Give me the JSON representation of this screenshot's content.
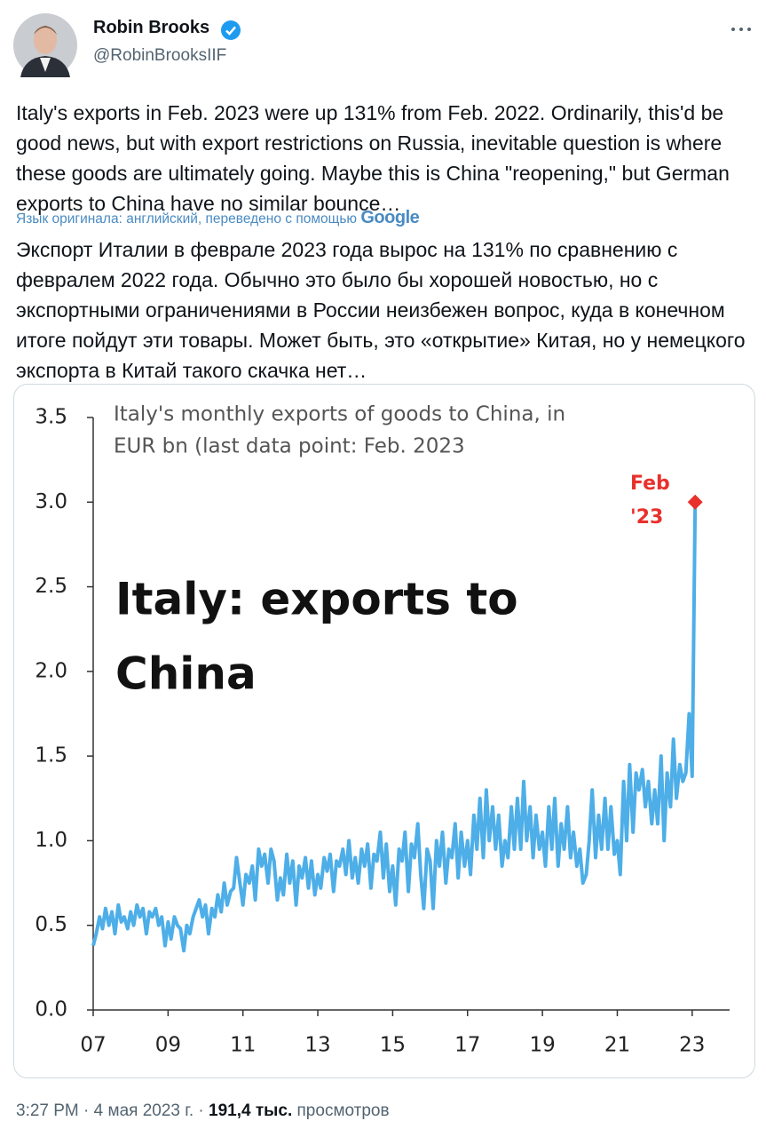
{
  "header": {
    "name": "Robin Brooks",
    "handle": "@RobinBrooksIIF"
  },
  "tweet": {
    "text": "Italy's exports in Feb. 2023 were up 131% from Feb. 2022. Ordinarily, this'd be good news, but with export restrictions on Russia, inevitable question is where these goods are ultimately going. Maybe this is China \"reopening,\" but German exports to China have no similar bounce…",
    "translation_note": "Язык оригинала: английский, переведено с помощью",
    "translator": "Google",
    "translated_text": "Экспорт Италии в феврале 2023 года вырос на 131% по сравнению с февралем 2022 года. Обычно это было бы хорошей новостью, но с экспортными ограничениями в России неизбежен вопрос, куда в конечном итоге пойдут эти товары. Может быть, это «открытие» Китая, но у немецкого экспорта в Китай такого скачка нет…"
  },
  "chart_data": {
    "type": "line",
    "title": [
      "Italy's monthly exports of goods to China, in",
      "EUR bn (last data point: Feb. 2023"
    ],
    "headline": [
      "Italy: exports to",
      "China"
    ],
    "annotation": [
      "Feb",
      "'23"
    ],
    "color": "#4daee8",
    "marker_color": "#e8312c",
    "x": [
      2007.0,
      2007.08,
      2007.17,
      2007.25,
      2007.33,
      2007.42,
      2007.5,
      2007.58,
      2007.67,
      2007.75,
      2007.83,
      2007.92,
      2008.0,
      2008.08,
      2008.17,
      2008.25,
      2008.33,
      2008.42,
      2008.5,
      2008.58,
      2008.67,
      2008.75,
      2008.83,
      2008.92,
      2009.0,
      2009.08,
      2009.17,
      2009.25,
      2009.33,
      2009.42,
      2009.5,
      2009.58,
      2009.67,
      2009.75,
      2009.83,
      2009.92,
      2010.0,
      2010.08,
      2010.17,
      2010.25,
      2010.33,
      2010.42,
      2010.5,
      2010.58,
      2010.67,
      2010.75,
      2010.83,
      2010.92,
      2011.0,
      2011.08,
      2011.17,
      2011.25,
      2011.33,
      2011.42,
      2011.5,
      2011.58,
      2011.67,
      2011.75,
      2011.83,
      2011.92,
      2012.0,
      2012.08,
      2012.17,
      2012.25,
      2012.33,
      2012.42,
      2012.5,
      2012.58,
      2012.67,
      2012.75,
      2012.83,
      2012.92,
      2013.0,
      2013.08,
      2013.17,
      2013.25,
      2013.33,
      2013.42,
      2013.5,
      2013.58,
      2013.67,
      2013.75,
      2013.83,
      2013.92,
      2014.0,
      2014.08,
      2014.17,
      2014.25,
      2014.33,
      2014.42,
      2014.5,
      2014.58,
      2014.67,
      2014.75,
      2014.83,
      2014.92,
      2015.0,
      2015.08,
      2015.17,
      2015.25,
      2015.33,
      2015.42,
      2015.5,
      2015.58,
      2015.67,
      2015.75,
      2015.83,
      2015.92,
      2016.0,
      2016.08,
      2016.17,
      2016.25,
      2016.33,
      2016.42,
      2016.5,
      2016.58,
      2016.67,
      2016.75,
      2016.83,
      2016.92,
      2017.0,
      2017.08,
      2017.17,
      2017.25,
      2017.33,
      2017.42,
      2017.5,
      2017.58,
      2017.67,
      2017.75,
      2017.83,
      2017.92,
      2018.0,
      2018.08,
      2018.17,
      2018.25,
      2018.33,
      2018.42,
      2018.5,
      2018.58,
      2018.67,
      2018.75,
      2018.83,
      2018.92,
      2019.0,
      2019.08,
      2019.17,
      2019.25,
      2019.33,
      2019.42,
      2019.5,
      2019.58,
      2019.67,
      2019.75,
      2019.83,
      2019.92,
      2020.0,
      2020.08,
      2020.17,
      2020.25,
      2020.33,
      2020.42,
      2020.5,
      2020.58,
      2020.67,
      2020.75,
      2020.83,
      2020.92,
      2021.0,
      2021.08,
      2021.17,
      2021.25,
      2021.33,
      2021.42,
      2021.5,
      2021.58,
      2021.67,
      2021.75,
      2021.83,
      2021.92,
      2022.0,
      2022.08,
      2022.17,
      2022.25,
      2022.33,
      2022.42,
      2022.5,
      2022.58,
      2022.67,
      2022.75,
      2022.83,
      2022.92,
      2023.0,
      2023.08
    ],
    "values": [
      0.38,
      0.45,
      0.55,
      0.48,
      0.6,
      0.5,
      0.58,
      0.45,
      0.62,
      0.52,
      0.55,
      0.48,
      0.58,
      0.5,
      0.62,
      0.55,
      0.6,
      0.45,
      0.58,
      0.55,
      0.6,
      0.5,
      0.55,
      0.38,
      0.52,
      0.42,
      0.55,
      0.5,
      0.48,
      0.35,
      0.5,
      0.45,
      0.55,
      0.6,
      0.65,
      0.55,
      0.62,
      0.45,
      0.6,
      0.55,
      0.68,
      0.58,
      0.75,
      0.62,
      0.7,
      0.72,
      0.9,
      0.75,
      0.62,
      0.8,
      0.75,
      0.85,
      0.65,
      0.95,
      0.85,
      0.92,
      0.75,
      0.95,
      0.88,
      0.65,
      0.78,
      0.68,
      0.92,
      0.75,
      0.88,
      0.62,
      0.85,
      0.78,
      0.9,
      0.72,
      0.88,
      0.68,
      0.8,
      0.72,
      0.9,
      0.82,
      0.92,
      0.7,
      0.88,
      0.85,
      0.95,
      0.8,
      1.0,
      0.78,
      0.9,
      0.75,
      0.95,
      0.85,
      0.98,
      0.72,
      0.92,
      0.88,
      1.05,
      0.78,
      0.98,
      0.7,
      0.85,
      0.62,
      0.95,
      0.88,
      1.05,
      0.7,
      0.98,
      0.9,
      1.1,
      0.8,
      0.6,
      0.95,
      0.88,
      0.6,
      1.0,
      0.85,
      1.05,
      0.75,
      0.95,
      0.9,
      1.1,
      0.78,
      1.05,
      0.85,
      1.0,
      0.8,
      1.15,
      0.95,
      1.25,
      0.9,
      1.3,
      1.0,
      1.2,
      0.95,
      1.15,
      0.85,
      1.0,
      0.9,
      1.2,
      0.95,
      1.25,
      0.95,
      1.35,
      1.0,
      1.2,
      0.9,
      1.15,
      0.95,
      1.05,
      0.85,
      1.2,
      0.95,
      1.25,
      0.85,
      1.1,
      0.95,
      1.2,
      0.9,
      1.05,
      0.85,
      0.95,
      0.75,
      0.8,
      1.0,
      1.3,
      0.9,
      1.15,
      0.95,
      1.25,
      0.95,
      1.2,
      0.92,
      1.0,
      0.8,
      1.35,
      1.0,
      1.45,
      1.05,
      1.4,
      1.3,
      1.42,
      1.2,
      1.35,
      1.1,
      1.3,
      1.1,
      1.5,
      1.0,
      1.4,
      1.2,
      1.6,
      1.25,
      1.45,
      1.35,
      1.4,
      1.75,
      1.38,
      3.0
    ],
    "xlim": [
      2007,
      2024
    ],
    "xticks": [
      {
        "value": 2007,
        "label": "07"
      },
      {
        "value": 2009,
        "label": "09"
      },
      {
        "value": 2011,
        "label": "11"
      },
      {
        "value": 2013,
        "label": "13"
      },
      {
        "value": 2015,
        "label": "15"
      },
      {
        "value": 2017,
        "label": "17"
      },
      {
        "value": 2019,
        "label": "19"
      },
      {
        "value": 2021,
        "label": "21"
      },
      {
        "value": 2023,
        "label": "23"
      }
    ],
    "ylim": [
      0,
      3.5
    ],
    "yticks": [
      {
        "value": 0,
        "label": "0.0"
      },
      0.5,
      {
        "value": 1,
        "label": "1.0"
      },
      1.5,
      {
        "value": 2,
        "label": "2.0"
      },
      2.5,
      {
        "value": 3,
        "label": "3.0"
      },
      3.5
    ]
  },
  "footer": {
    "time": "3:27 PM",
    "separator": "·",
    "date": "4 мая 2023 г.",
    "views": "191,4 тыс.",
    "views_label": "просмотров"
  }
}
